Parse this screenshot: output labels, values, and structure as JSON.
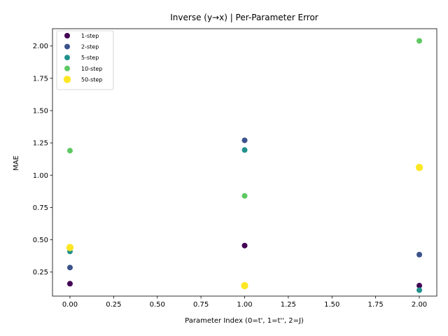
{
  "chart_data": {
    "type": "scatter",
    "title": "Inverse (y→x) | Per-Parameter Error",
    "xlabel": "Parameter Index (0=t', 1=t'', 2=J)",
    "ylabel": "MAE",
    "xlim": [
      -0.1,
      2.1
    ],
    "ylim": [
      0.064,
      2.134
    ],
    "xticks": [
      0.0,
      0.25,
      0.5,
      0.75,
      1.0,
      1.25,
      1.5,
      1.75,
      2.0
    ],
    "xtick_labels": [
      "0.00",
      "0.25",
      "0.50",
      "0.75",
      "1.00",
      "1.25",
      "1.50",
      "1.75",
      "2.00"
    ],
    "yticks": [
      0.25,
      0.5,
      0.75,
      1.0,
      1.25,
      1.5,
      1.75,
      2.0
    ],
    "ytick_labels": [
      "0.25",
      "0.50",
      "0.75",
      "1.00",
      "1.25",
      "1.50",
      "1.75",
      "2.00"
    ],
    "grid": false,
    "legend_position": "upper-left",
    "series": [
      {
        "name": "1-step",
        "color": "#440154",
        "x": [
          0,
          1,
          2
        ],
        "y": [
          0.16,
          0.455,
          0.145
        ]
      },
      {
        "name": "2-step",
        "color": "#3b528b",
        "x": [
          0,
          1,
          2
        ],
        "y": [
          0.285,
          1.27,
          0.385
        ]
      },
      {
        "name": "5-step",
        "color": "#21918c",
        "x": [
          0,
          1,
          2
        ],
        "y": [
          0.41,
          1.195,
          0.11
        ]
      },
      {
        "name": "10-step",
        "color": "#5ec962",
        "x": [
          0,
          1,
          2
        ],
        "y": [
          1.19,
          0.84,
          2.04
        ]
      },
      {
        "name": "50-step",
        "color": "#fde725",
        "x": [
          0,
          1,
          2
        ],
        "y": [
          0.44,
          0.145,
          1.06
        ]
      }
    ]
  }
}
